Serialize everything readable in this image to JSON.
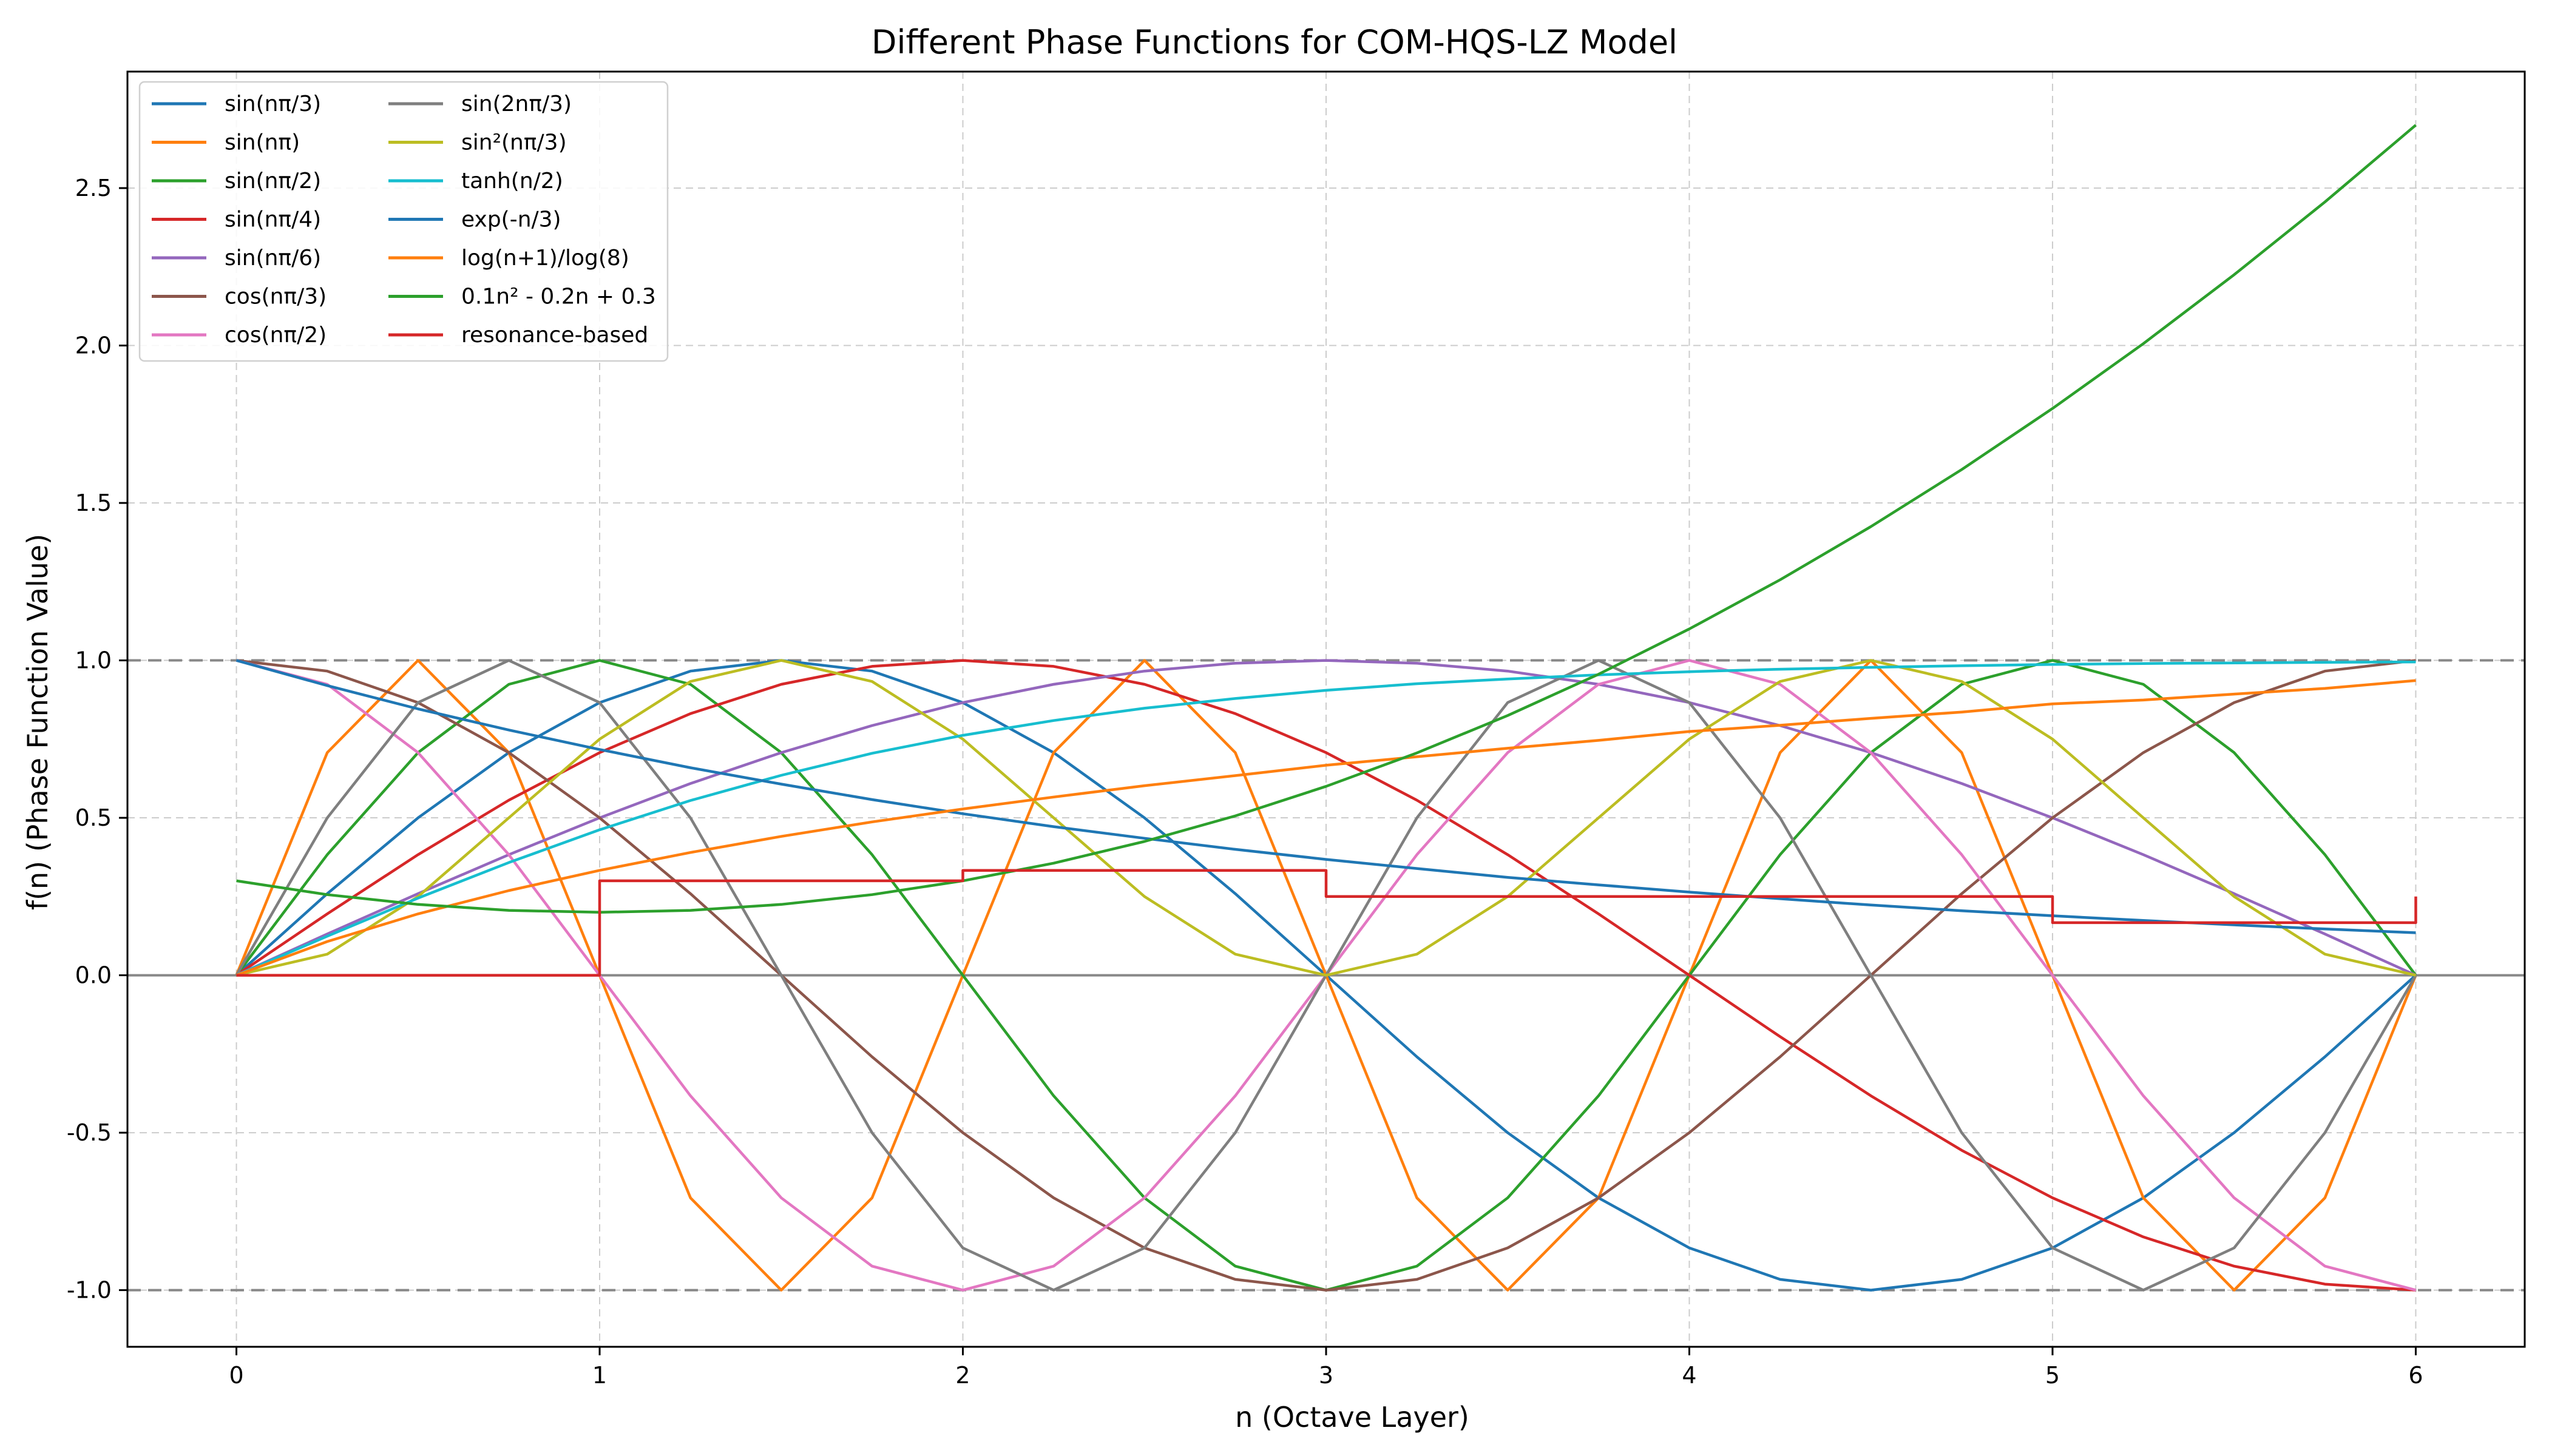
{
  "chart_data": {
    "type": "line",
    "title": "Different Phase Functions for COM-HQS-LZ Model",
    "xlabel": "n (Octave Layer)",
    "ylabel": "f(n) (Phase Function Value)",
    "xlim": [
      -0.3,
      6.3
    ],
    "ylim": [
      -1.18,
      2.87
    ],
    "xticks": [
      0,
      1,
      2,
      3,
      4,
      5,
      6
    ],
    "yticks": [
      -1.0,
      -0.5,
      0.0,
      0.5,
      1.0,
      1.5,
      2.0,
      2.5
    ],
    "xtick_labels": [
      "0",
      "1",
      "2",
      "3",
      "4",
      "5",
      "6"
    ],
    "ytick_labels": [
      "-1.0",
      "-0.5",
      "0.0",
      "0.5",
      "1.0",
      "1.5",
      "2.0",
      "2.5"
    ],
    "grid": true,
    "legend_position": "top-left",
    "reference_lines": [
      {
        "y": 1.0,
        "style": "dashed",
        "color": "#888888"
      },
      {
        "y": 0.0,
        "style": "solid",
        "color": "#888888"
      },
      {
        "y": -1.0,
        "style": "dashed",
        "color": "#888888"
      }
    ],
    "x_samples": [
      0,
      0.25,
      0.5,
      0.75,
      1,
      1.25,
      1.5,
      1.75,
      2,
      2.25,
      2.5,
      2.75,
      3,
      3.25,
      3.5,
      3.75,
      4,
      4.25,
      4.5,
      4.75,
      5,
      5.25,
      5.5,
      5.75,
      6
    ],
    "series": [
      {
        "name": "sin(nπ/3)",
        "color": "#1f77b4",
        "values": [
          0,
          0.259,
          0.5,
          0.707,
          0.866,
          0.966,
          1.0,
          0.966,
          0.866,
          0.707,
          0.5,
          0.259,
          0,
          -0.259,
          -0.5,
          -0.707,
          -0.866,
          -0.966,
          -1.0,
          -0.966,
          -0.866,
          -0.707,
          -0.5,
          -0.259,
          0
        ]
      },
      {
        "name": "sin(nπ)",
        "color": "#ff7f0e",
        "values": [
          0,
          0.707,
          1.0,
          0.707,
          0,
          -0.707,
          -1.0,
          -0.707,
          0,
          0.707,
          1.0,
          0.707,
          0,
          -0.707,
          -1.0,
          -0.707,
          0,
          0.707,
          1.0,
          0.707,
          0,
          -0.707,
          -1.0,
          -0.707,
          0
        ]
      },
      {
        "name": "sin(nπ/2)",
        "color": "#2ca02c",
        "values": [
          0,
          0.383,
          0.707,
          0.924,
          1.0,
          0.924,
          0.707,
          0.383,
          0,
          -0.383,
          -0.707,
          -0.924,
          -1.0,
          -0.924,
          -0.707,
          -0.383,
          0,
          0.383,
          0.707,
          0.924,
          1.0,
          0.924,
          0.707,
          0.383,
          0
        ]
      },
      {
        "name": "sin(nπ/4)",
        "color": "#d62728",
        "values": [
          0,
          0.195,
          0.383,
          0.556,
          0.707,
          0.831,
          0.924,
          0.981,
          1.0,
          0.981,
          0.924,
          0.831,
          0.707,
          0.556,
          0.383,
          0.195,
          0,
          -0.195,
          -0.383,
          -0.556,
          -0.707,
          -0.831,
          -0.924,
          -0.981,
          -1.0
        ]
      },
      {
        "name": "sin(nπ/6)",
        "color": "#9467bd",
        "values": [
          0,
          0.131,
          0.259,
          0.383,
          0.5,
          0.609,
          0.707,
          0.793,
          0.866,
          0.924,
          0.966,
          0.991,
          1.0,
          0.991,
          0.966,
          0.924,
          0.866,
          0.793,
          0.707,
          0.609,
          0.5,
          0.383,
          0.259,
          0.131,
          0
        ]
      },
      {
        "name": "cos(nπ/3)",
        "color": "#8c564b",
        "values": [
          1.0,
          0.966,
          0.866,
          0.707,
          0.5,
          0.259,
          0,
          -0.259,
          -0.5,
          -0.707,
          -0.866,
          -0.966,
          -1.0,
          -0.966,
          -0.866,
          -0.707,
          -0.5,
          -0.259,
          0,
          0.259,
          0.5,
          0.707,
          0.866,
          0.966,
          1.0
        ]
      },
      {
        "name": "cos(nπ/2)",
        "color": "#e377c2",
        "values": [
          1.0,
          0.924,
          0.707,
          0.383,
          0,
          -0.383,
          -0.707,
          -0.924,
          -1.0,
          -0.924,
          -0.707,
          -0.383,
          0,
          0.383,
          0.707,
          0.924,
          1.0,
          0.924,
          0.707,
          0.383,
          0,
          -0.383,
          -0.707,
          -0.924,
          -1.0
        ]
      },
      {
        "name": "sin(2nπ/3)",
        "color": "#7f7f7f",
        "values": [
          0,
          0.5,
          0.866,
          1.0,
          0.866,
          0.5,
          0,
          -0.5,
          -0.866,
          -1.0,
          -0.866,
          -0.5,
          0,
          0.5,
          0.866,
          1.0,
          0.866,
          0.5,
          0,
          -0.5,
          -0.866,
          -1.0,
          -0.866,
          -0.5,
          0
        ]
      },
      {
        "name": "sin²(nπ/3)",
        "color": "#bcbd22",
        "values": [
          0,
          0.067,
          0.25,
          0.5,
          0.75,
          0.933,
          1.0,
          0.933,
          0.75,
          0.5,
          0.25,
          0.067,
          0,
          0.067,
          0.25,
          0.5,
          0.75,
          0.933,
          1.0,
          0.933,
          0.75,
          0.5,
          0.25,
          0.067,
          0
        ]
      },
      {
        "name": "tanh(n/2)",
        "color": "#17becf",
        "values": [
          0,
          0.124,
          0.245,
          0.358,
          0.462,
          0.555,
          0.635,
          0.705,
          0.762,
          0.809,
          0.848,
          0.879,
          0.905,
          0.926,
          0.941,
          0.954,
          0.964,
          0.972,
          0.978,
          0.983,
          0.987,
          0.99,
          0.992,
          0.994,
          0.995
        ]
      },
      {
        "name": "exp(-n/3)",
        "color": "#1f77b4",
        "values": [
          1.0,
          0.92,
          0.846,
          0.779,
          0.717,
          0.659,
          0.607,
          0.558,
          0.513,
          0.472,
          0.435,
          0.4,
          0.368,
          0.339,
          0.311,
          0.287,
          0.264,
          0.243,
          0.223,
          0.205,
          0.189,
          0.174,
          0.16,
          0.147,
          0.135
        ]
      },
      {
        "name": "log(n+1)/log(8)",
        "color": "#ff7f0e",
        "values": [
          0,
          0.107,
          0.195,
          0.269,
          0.333,
          0.39,
          0.441,
          0.487,
          0.528,
          0.566,
          0.602,
          0.634,
          0.667,
          0.694,
          0.721,
          0.746,
          0.774,
          0.794,
          0.816,
          0.836,
          0.862,
          0.874,
          0.893,
          0.911,
          0.936
        ]
      },
      {
        "name": "0.1n² - 0.2n + 0.3",
        "color": "#2ca02c",
        "values": [
          0.3,
          0.256,
          0.225,
          0.206,
          0.2,
          0.206,
          0.225,
          0.256,
          0.3,
          0.356,
          0.425,
          0.506,
          0.6,
          0.706,
          0.825,
          0.956,
          1.1,
          1.256,
          1.425,
          1.606,
          1.8,
          2.006,
          2.225,
          2.456,
          2.7
        ]
      },
      {
        "name": "resonance-based",
        "color": "#d62728",
        "step": true,
        "points": [
          [
            0,
            0
          ],
          [
            1,
            0
          ],
          [
            1,
            0.3
          ],
          [
            2,
            0.3
          ],
          [
            2,
            0.333
          ],
          [
            3,
            0.333
          ],
          [
            3,
            0.25
          ],
          [
            5,
            0.25
          ],
          [
            5,
            0.167
          ],
          [
            6,
            0.167
          ],
          [
            6,
            0.25
          ]
        ]
      }
    ]
  }
}
